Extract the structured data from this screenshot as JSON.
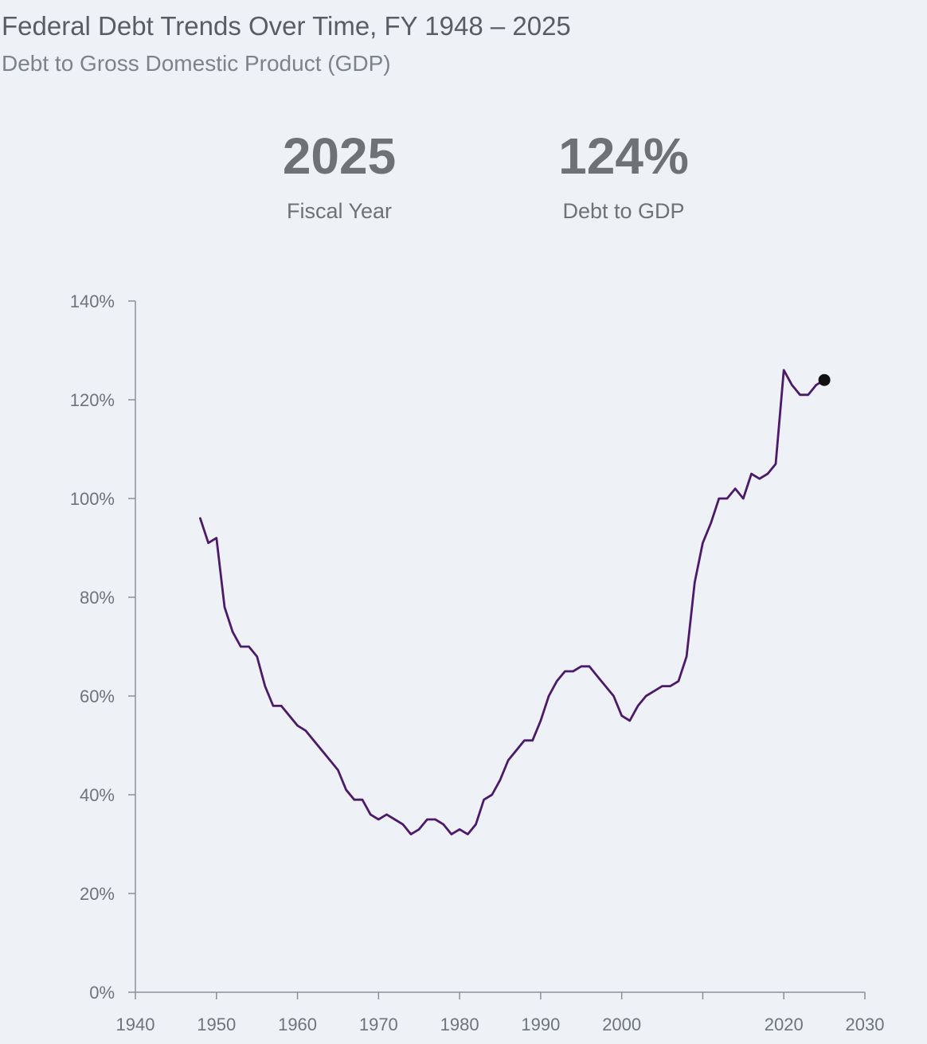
{
  "header": {
    "title": "Federal Debt Trends Over Time, FY 1948 – 2025",
    "subtitle": "Debt to Gross Domestic Product (GDP)"
  },
  "stats": {
    "year_value": "2025",
    "year_label": "Fiscal Year",
    "debt_value": "124%",
    "debt_label": "Debt to GDP"
  },
  "chart_data": {
    "type": "line",
    "title": "Federal Debt Trends Over Time, FY 1948 – 2025",
    "subtitle": "Debt to Gross Domestic Product (GDP)",
    "xlabel": "",
    "ylabel": "",
    "xlim": [
      1940,
      2030
    ],
    "ylim": [
      0,
      140
    ],
    "x_ticks": [
      "1940",
      "1950",
      "1960",
      "1970",
      "1980",
      "1990",
      "2000",
      "",
      "2020",
      "2030"
    ],
    "y_ticks": [
      "0%",
      "20%",
      "40%",
      "60%",
      "80%",
      "100%",
      "120%",
      "140%"
    ],
    "grid": false,
    "line_color": "#4b1a6b",
    "marker_color": "#111111",
    "highlight": {
      "x": 2025,
      "y": 124
    },
    "series": [
      {
        "x": [
          1948,
          1949,
          1950,
          1951,
          1952,
          1953,
          1954,
          1955,
          1956,
          1957,
          1958,
          1959,
          1960,
          1961,
          1962,
          1963,
          1964,
          1965,
          1966,
          1967,
          1968,
          1969,
          1970,
          1971,
          1972,
          1973,
          1974,
          1975,
          1976,
          1977,
          1978,
          1979,
          1980,
          1981,
          1982,
          1983,
          1984,
          1985,
          1986,
          1987,
          1988,
          1989,
          1990,
          1991,
          1992,
          1993,
          1994,
          1995,
          1996,
          1997,
          1998,
          1999,
          2000,
          2001,
          2002,
          2003,
          2004,
          2005,
          2006,
          2007,
          2008,
          2009,
          2010,
          2011,
          2012,
          2013,
          2014,
          2015,
          2016,
          2017,
          2018,
          2019,
          2020,
          2021,
          2022,
          2023,
          2024,
          2025
        ],
        "values": [
          96,
          91,
          92,
          78,
          73,
          70,
          70,
          68,
          62,
          58,
          58,
          56,
          54,
          53,
          51,
          49,
          47,
          45,
          41,
          39,
          39,
          36,
          35,
          36,
          35,
          34,
          32,
          33,
          35,
          35,
          34,
          32,
          33,
          32,
          34,
          39,
          40,
          43,
          47,
          49,
          51,
          51,
          55,
          60,
          63,
          65,
          65,
          66,
          66,
          64,
          62,
          60,
          56,
          55,
          58,
          60,
          61,
          62,
          62,
          63,
          68,
          83,
          91,
          95,
          100,
          100,
          102,
          100,
          105,
          104,
          105,
          107,
          126,
          123,
          121,
          121,
          123,
          124
        ]
      }
    ]
  }
}
